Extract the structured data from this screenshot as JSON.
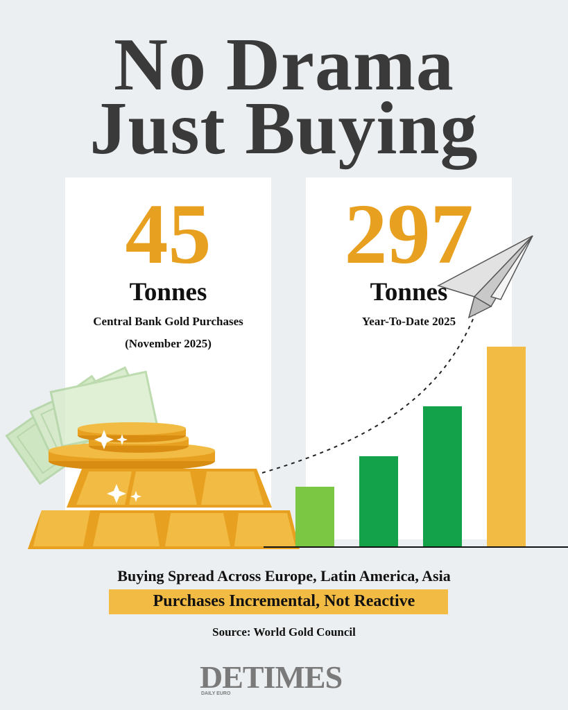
{
  "headline": {
    "line1": "No Drama",
    "line2": "Just Buying"
  },
  "stats": [
    {
      "value": "45",
      "unit": "Tonnes",
      "label": "Central Bank Gold Purchases",
      "period": "(November 2025)"
    },
    {
      "value": "297",
      "unit": "Tonnes",
      "label": "Year-To-Date 2025"
    }
  ],
  "bars": {
    "colors": [
      "#7bc744",
      "#13a24a",
      "#13a24a",
      "#f2bb43"
    ],
    "relative_heights": [
      0.3,
      0.45,
      0.7,
      1.0
    ]
  },
  "footer": {
    "line1": "Buying Spread Across Europe, Latin America, Asia",
    "highlight": "Purchases Incremental, Not Reactive",
    "source": "Source: World Gold Council"
  },
  "logo": {
    "mark": "DETIMES",
    "small": "DAILY EURO"
  },
  "colors": {
    "gold": "#e8a020",
    "highlight": "#f2bb43",
    "green_light": "#7bc744",
    "green_dark": "#13a24a",
    "title": "#3a3a3a"
  }
}
